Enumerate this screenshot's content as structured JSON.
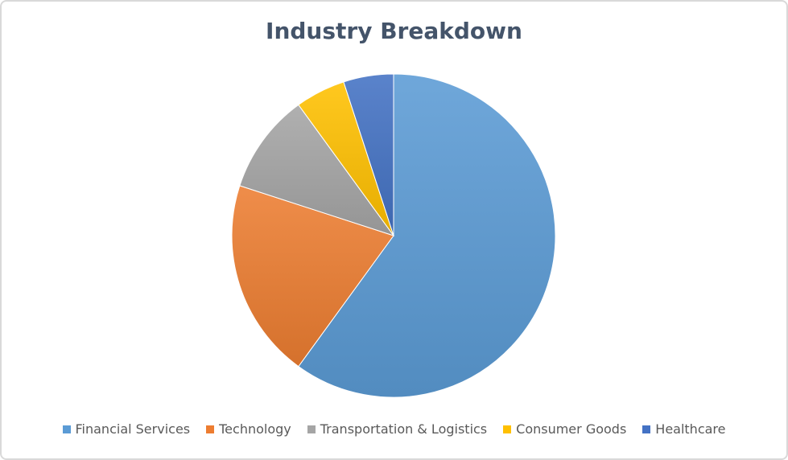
{
  "chart_data": {
    "type": "pie",
    "title": "Industry Breakdown",
    "categories": [
      "Financial Services",
      "Technology",
      "Transportation & Logistics",
      "Consumer Goods",
      "Healthcare"
    ],
    "values": [
      60,
      20,
      10,
      5,
      5
    ],
    "colors": [
      "#5b9bd5",
      "#ed7d31",
      "#a5a5a5",
      "#ffc000",
      "#4472c4"
    ],
    "start_angle_deg": 0,
    "direction": "clockwise",
    "legend_position": "bottom"
  }
}
